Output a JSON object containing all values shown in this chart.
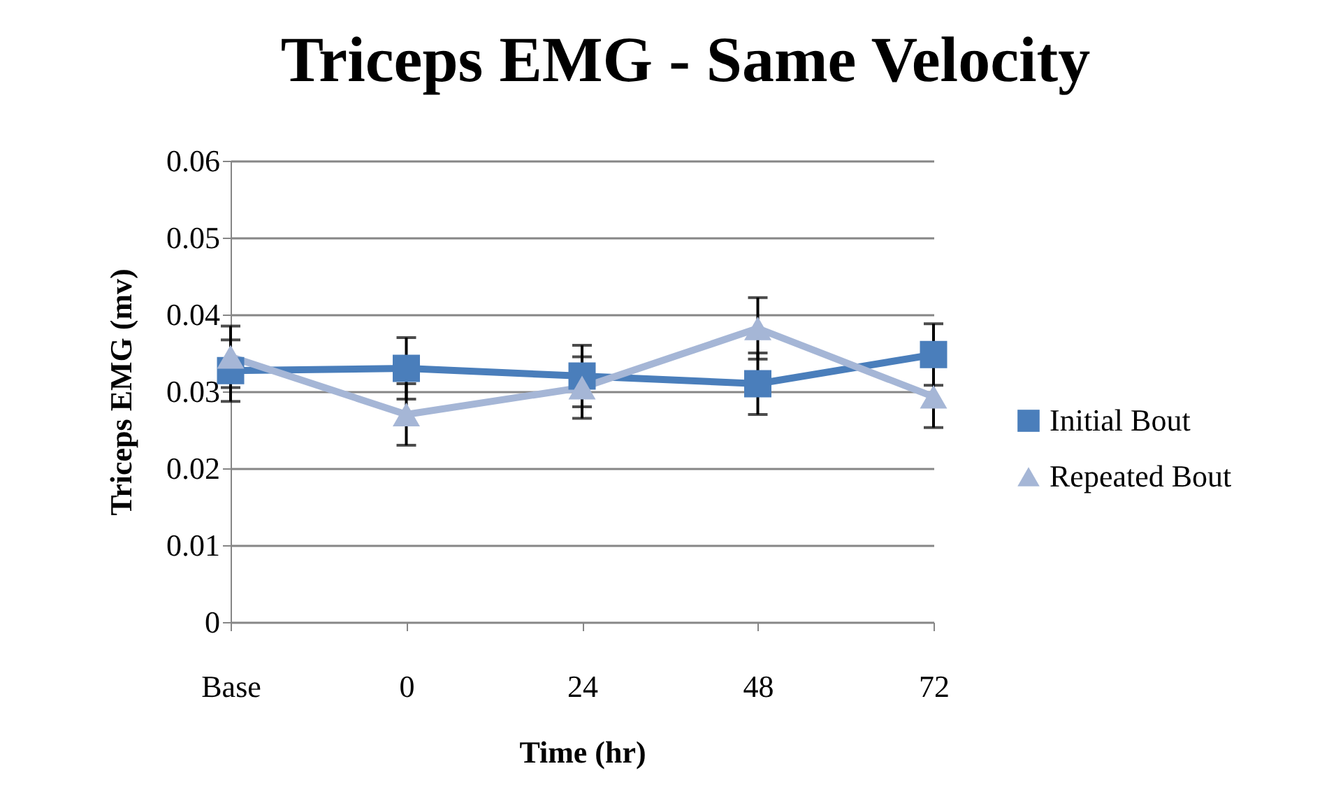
{
  "chart_data": {
    "type": "line",
    "title": "Triceps EMG - Same Velocity",
    "xlabel": "Time (hr)",
    "ylabel": "Triceps EMG (mv)",
    "categories": [
      "Base",
      "0",
      "24",
      "48",
      "72"
    ],
    "series": [
      {
        "name": "Initial Bout",
        "color": "#4a7ebb",
        "marker": "square",
        "values": [
          0.0327,
          0.033,
          0.032,
          0.031,
          0.0348
        ],
        "errors": [
          0.004,
          0.004,
          0.004,
          0.004,
          0.004
        ]
      },
      {
        "name": "Repeated Bout",
        "color": "#a5b6d6",
        "marker": "triangle",
        "values": [
          0.0345,
          0.027,
          0.0305,
          0.0382,
          0.0293
        ],
        "errors": [
          0.004,
          0.004,
          0.004,
          0.004,
          0.004
        ]
      }
    ],
    "ylim": [
      0,
      0.06
    ],
    "yticks": [
      0,
      0.01,
      0.02,
      0.03,
      0.04,
      0.05,
      0.06
    ],
    "grid": "y",
    "legend": "right"
  }
}
